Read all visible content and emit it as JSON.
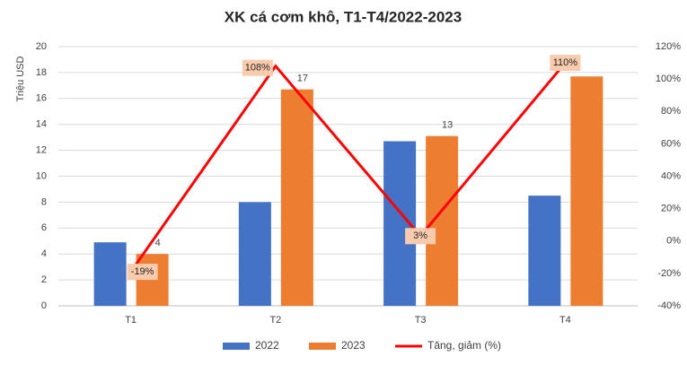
{
  "chart_data": {
    "type": "bar_line",
    "title": "XK cá cơm khô, T1-T4/2022-2023",
    "y_label": "Triệu USD",
    "categories": [
      "T1",
      "T2",
      "T3",
      "T4"
    ],
    "series": [
      {
        "name": "2022",
        "color": "#4472c4",
        "type": "bar",
        "values": [
          4.9,
          8.0,
          12.7,
          8.5
        ]
      },
      {
        "name": "2023",
        "color": "#ed7d31",
        "type": "bar",
        "values": [
          4.0,
          16.7,
          13.1,
          17.7
        ],
        "value_labels": [
          "4",
          "17",
          "13",
          null
        ]
      },
      {
        "name": "Tăng, giảm (%)",
        "color": "#ff0000",
        "type": "line",
        "axis": "y2",
        "values": [
          -19,
          108,
          3,
          110
        ],
        "value_labels": [
          "-19%",
          "108%",
          "3%",
          "110%"
        ]
      }
    ],
    "ylim": [
      0,
      20
    ],
    "yticks": [
      0,
      2,
      4,
      6,
      8,
      10,
      12,
      14,
      16,
      18,
      20
    ],
    "y2lim": [
      -40,
      120
    ],
    "y2ticks": [
      {
        "value": -40,
        "label": "-40%"
      },
      {
        "value": -20,
        "label": "-20%"
      },
      {
        "value": 0,
        "label": "0%"
      },
      {
        "value": 20,
        "label": "20%"
      },
      {
        "value": 40,
        "label": "40%"
      },
      {
        "value": 60,
        "label": "60%"
      },
      {
        "value": 80,
        "label": "80%"
      },
      {
        "value": 100,
        "label": "100%"
      },
      {
        "value": 120,
        "label": "120%"
      }
    ],
    "grid": true,
    "legend": "bottom"
  }
}
